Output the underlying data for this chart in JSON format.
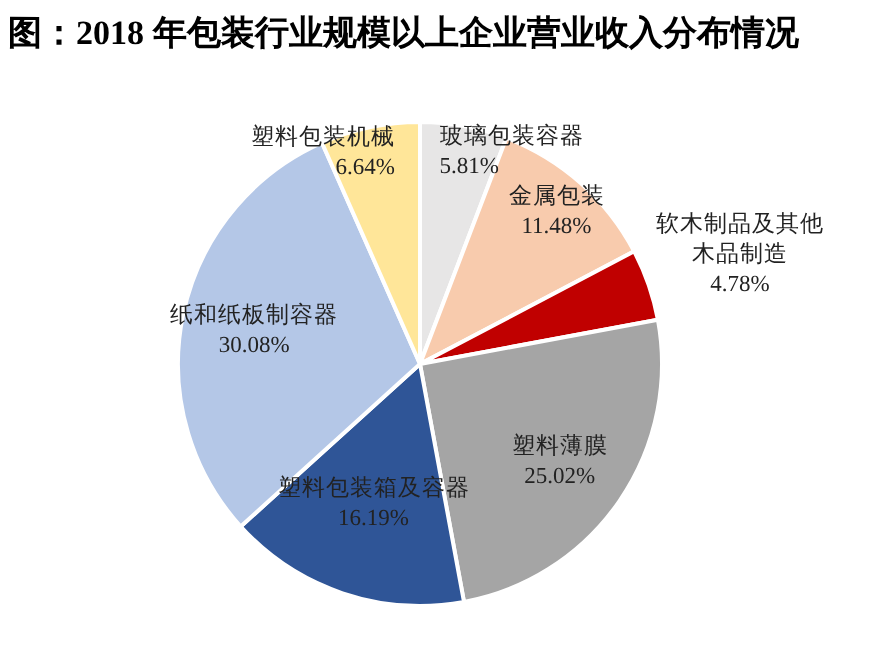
{
  "chart_data": {
    "type": "pie",
    "title": "图：2018 年包装行业规模以上企业营业收入分布情况",
    "categories": [
      "玻璃包装容器",
      "金属包装",
      "软木制品及其他木品制造",
      "塑料薄膜",
      "塑料包装箱及容器",
      "纸和纸板制容器",
      "塑料包装机械"
    ],
    "values": [
      5.81,
      11.48,
      4.78,
      25.02,
      16.19,
      30.08,
      6.64
    ],
    "colors": [
      "#e7e6e6",
      "#f8cbad",
      "#c00000",
      "#a5a5a5",
      "#2f5597",
      "#b4c7e7",
      "#ffe699"
    ],
    "value_labels": [
      "5.81%",
      "11.48%",
      "4.78%",
      "25.02%",
      "16.19%",
      "30.08%",
      "6.64%"
    ]
  }
}
